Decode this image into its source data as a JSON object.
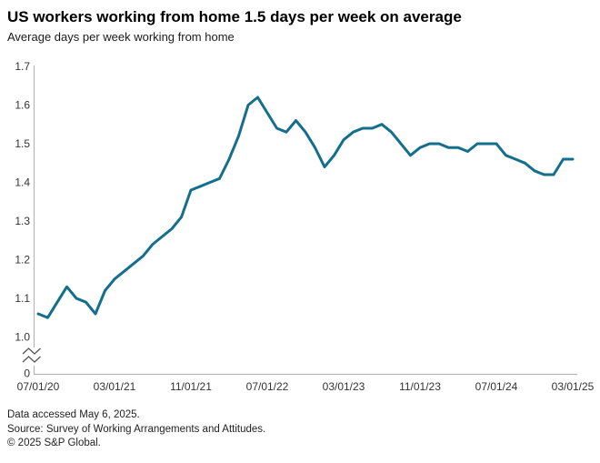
{
  "header": {
    "title": "US workers working from home 1.5 days per week on average",
    "subtitle": "Average days per week working from home"
  },
  "chart_data": {
    "type": "line",
    "title": "US workers working from home 1.5 days per week on average",
    "subtitle": "Average days per week working from home",
    "xlabel": "",
    "ylabel": "Average days per week working from home",
    "grid": false,
    "legend": "none",
    "ylim_display": [
      1.0,
      1.7
    ],
    "y_axis_break_to_zero": true,
    "y_tick_labels": [
      "1.7",
      "1.6",
      "1.5",
      "1.4",
      "1.3",
      "1.2",
      "1.1",
      "1.0"
    ],
    "y_zero_label": "0",
    "x_tick_labels": [
      "07/01/20",
      "03/01/21",
      "11/01/21",
      "07/01/22",
      "03/01/23",
      "11/01/23",
      "07/01/24",
      "03/01/25"
    ],
    "x_tick_indices": [
      0,
      8,
      16,
      24,
      32,
      40,
      48,
      56
    ],
    "x": [
      "07/01/20",
      "08/01/20",
      "09/01/20",
      "10/01/20",
      "11/01/20",
      "12/01/20",
      "01/01/21",
      "02/01/21",
      "03/01/21",
      "04/01/21",
      "05/01/21",
      "06/01/21",
      "07/01/21",
      "08/01/21",
      "09/01/21",
      "10/01/21",
      "11/01/21",
      "12/01/21",
      "01/01/22",
      "02/01/22",
      "03/01/22",
      "04/01/22",
      "05/01/22",
      "06/01/22",
      "07/01/22",
      "08/01/22",
      "09/01/22",
      "10/01/22",
      "11/01/22",
      "12/01/22",
      "01/01/23",
      "02/01/23",
      "03/01/23",
      "04/01/23",
      "05/01/23",
      "06/01/23",
      "07/01/23",
      "08/01/23",
      "09/01/23",
      "10/01/23",
      "11/01/23",
      "12/01/23",
      "01/01/24",
      "02/01/24",
      "03/01/24",
      "04/01/24",
      "05/01/24",
      "06/01/24",
      "07/01/24",
      "08/01/24",
      "09/01/24",
      "10/01/24",
      "11/01/24",
      "12/01/24",
      "01/01/25",
      "02/01/25",
      "03/01/25"
    ],
    "series": [
      {
        "name": "Average days per week working from home",
        "color": "#146f8d",
        "values": [
          1.06,
          1.05,
          1.09,
          1.13,
          1.1,
          1.09,
          1.06,
          1.12,
          1.15,
          1.17,
          1.19,
          1.21,
          1.24,
          1.26,
          1.28,
          1.31,
          1.38,
          1.39,
          1.4,
          1.41,
          1.46,
          1.52,
          1.6,
          1.62,
          1.58,
          1.54,
          1.53,
          1.56,
          1.53,
          1.49,
          1.44,
          1.47,
          1.51,
          1.53,
          1.54,
          1.54,
          1.55,
          1.53,
          1.5,
          1.47,
          1.49,
          1.5,
          1.5,
          1.49,
          1.49,
          1.48,
          1.5,
          1.5,
          1.5,
          1.47,
          1.46,
          1.45,
          1.43,
          1.42,
          1.42,
          1.46,
          1.46
        ]
      }
    ]
  },
  "footer": {
    "data_accessed": "Data accessed May 6, 2025.",
    "source": "Source: Survey of Working Arrangements and Attitudes.",
    "copyright": "© 2025 S&P Global."
  },
  "colors": {
    "accent": "#146f8d",
    "axis_line": "#b5b5b5",
    "tick_text": "#333333",
    "break_mark": "#555555",
    "title_text": "#000000",
    "footer_text": "#222222"
  }
}
